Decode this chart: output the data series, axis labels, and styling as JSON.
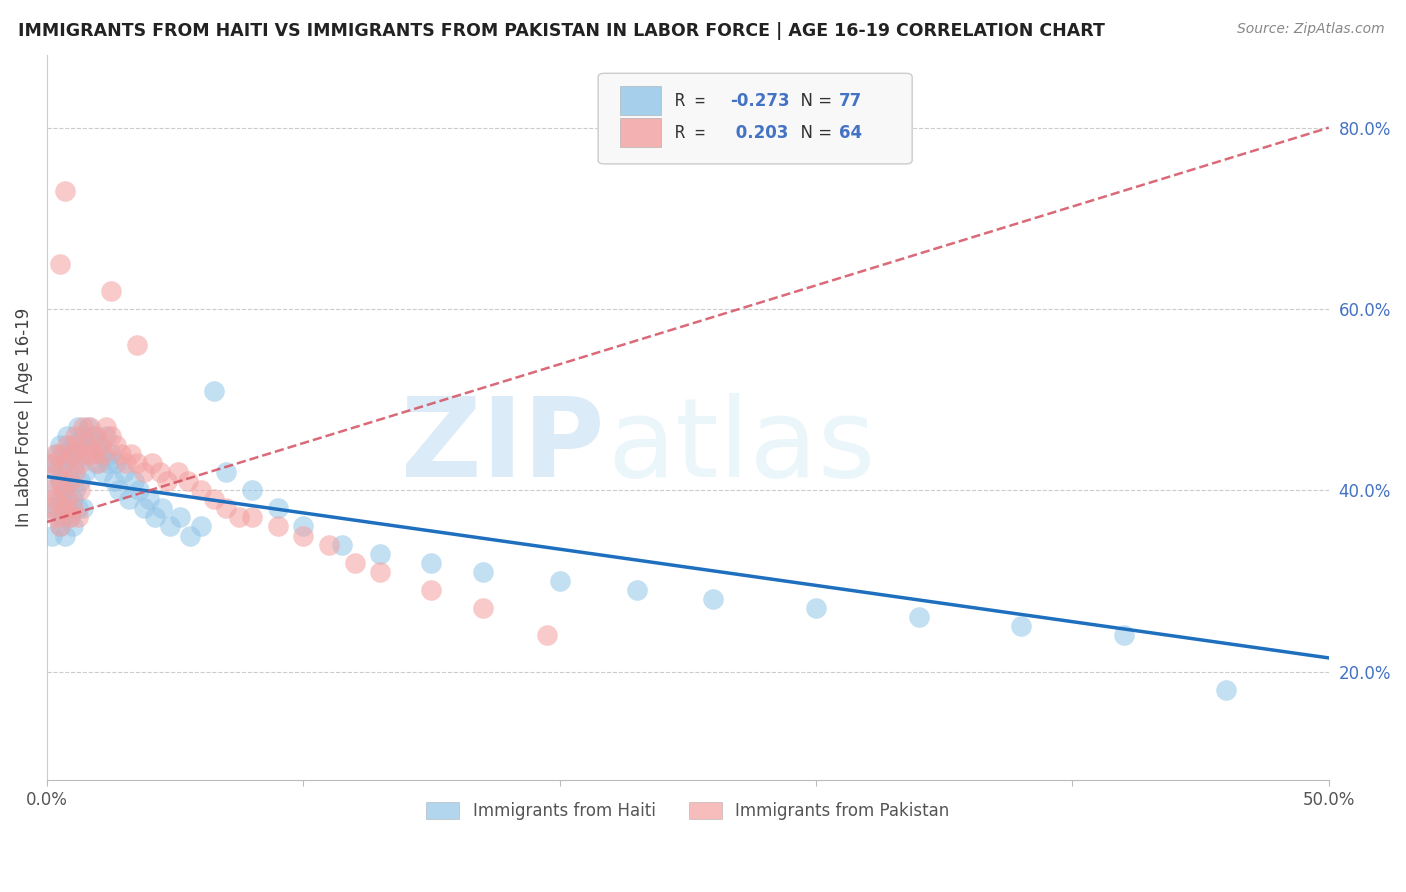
{
  "title": "IMMIGRANTS FROM HAITI VS IMMIGRANTS FROM PAKISTAN IN LABOR FORCE | AGE 16-19 CORRELATION CHART",
  "source": "Source: ZipAtlas.com",
  "ylabel": "In Labor Force | Age 16-19",
  "xlim": [
    0.0,
    0.5
  ],
  "ylim": [
    0.08,
    0.88
  ],
  "legend_labels": [
    "Immigrants from Haiti",
    "Immigrants from Pakistan"
  ],
  "haiti_color": "#92C5E8",
  "pakistan_color": "#F4A0A0",
  "haiti_line_color": "#1F6FBF",
  "pakistan_line_color": "#D45060",
  "haiti_r": -0.273,
  "haiti_n": 77,
  "pakistan_r": 0.203,
  "pakistan_n": 64,
  "haiti_scatter_x": [
    0.001,
    0.002,
    0.002,
    0.003,
    0.003,
    0.004,
    0.004,
    0.005,
    0.005,
    0.005,
    0.006,
    0.006,
    0.006,
    0.007,
    0.007,
    0.007,
    0.008,
    0.008,
    0.008,
    0.009,
    0.009,
    0.009,
    0.01,
    0.01,
    0.01,
    0.011,
    0.011,
    0.012,
    0.012,
    0.013,
    0.013,
    0.014,
    0.014,
    0.015,
    0.015,
    0.016,
    0.017,
    0.018,
    0.019,
    0.02,
    0.021,
    0.022,
    0.023,
    0.024,
    0.025,
    0.026,
    0.027,
    0.028,
    0.03,
    0.032,
    0.034,
    0.036,
    0.038,
    0.04,
    0.042,
    0.045,
    0.048,
    0.052,
    0.056,
    0.06,
    0.065,
    0.07,
    0.08,
    0.09,
    0.1,
    0.115,
    0.13,
    0.15,
    0.17,
    0.2,
    0.23,
    0.26,
    0.3,
    0.34,
    0.38,
    0.42,
    0.46
  ],
  "haiti_scatter_y": [
    0.38,
    0.42,
    0.35,
    0.4,
    0.43,
    0.38,
    0.44,
    0.41,
    0.36,
    0.45,
    0.39,
    0.42,
    0.37,
    0.44,
    0.4,
    0.35,
    0.43,
    0.38,
    0.46,
    0.41,
    0.37,
    0.44,
    0.45,
    0.39,
    0.36,
    0.43,
    0.4,
    0.47,
    0.38,
    0.44,
    0.41,
    0.46,
    0.38,
    0.45,
    0.42,
    0.47,
    0.44,
    0.46,
    0.43,
    0.45,
    0.44,
    0.42,
    0.46,
    0.43,
    0.44,
    0.41,
    0.43,
    0.4,
    0.42,
    0.39,
    0.41,
    0.4,
    0.38,
    0.39,
    0.37,
    0.38,
    0.36,
    0.37,
    0.35,
    0.36,
    0.51,
    0.42,
    0.4,
    0.38,
    0.36,
    0.34,
    0.33,
    0.32,
    0.31,
    0.3,
    0.29,
    0.28,
    0.27,
    0.26,
    0.25,
    0.24,
    0.18
  ],
  "pakistan_scatter_x": [
    0.001,
    0.002,
    0.002,
    0.003,
    0.003,
    0.004,
    0.004,
    0.005,
    0.005,
    0.006,
    0.006,
    0.007,
    0.007,
    0.008,
    0.008,
    0.009,
    0.009,
    0.01,
    0.01,
    0.011,
    0.011,
    0.012,
    0.012,
    0.013,
    0.013,
    0.014,
    0.015,
    0.016,
    0.017,
    0.018,
    0.019,
    0.02,
    0.021,
    0.022,
    0.023,
    0.025,
    0.027,
    0.029,
    0.031,
    0.033,
    0.035,
    0.038,
    0.041,
    0.044,
    0.047,
    0.051,
    0.055,
    0.06,
    0.065,
    0.07,
    0.075,
    0.08,
    0.09,
    0.1,
    0.11,
    0.12,
    0.13,
    0.15,
    0.17,
    0.195,
    0.005,
    0.007,
    0.025,
    0.035
  ],
  "pakistan_scatter_y": [
    0.4,
    0.38,
    0.43,
    0.39,
    0.44,
    0.37,
    0.42,
    0.41,
    0.36,
    0.4,
    0.44,
    0.38,
    0.43,
    0.39,
    0.45,
    0.37,
    0.41,
    0.44,
    0.38,
    0.42,
    0.46,
    0.37,
    0.45,
    0.4,
    0.43,
    0.47,
    0.44,
    0.45,
    0.47,
    0.44,
    0.46,
    0.43,
    0.45,
    0.44,
    0.47,
    0.46,
    0.45,
    0.44,
    0.43,
    0.44,
    0.43,
    0.42,
    0.43,
    0.42,
    0.41,
    0.42,
    0.41,
    0.4,
    0.39,
    0.38,
    0.37,
    0.37,
    0.36,
    0.35,
    0.34,
    0.32,
    0.31,
    0.29,
    0.27,
    0.24,
    0.65,
    0.73,
    0.62,
    0.56
  ]
}
